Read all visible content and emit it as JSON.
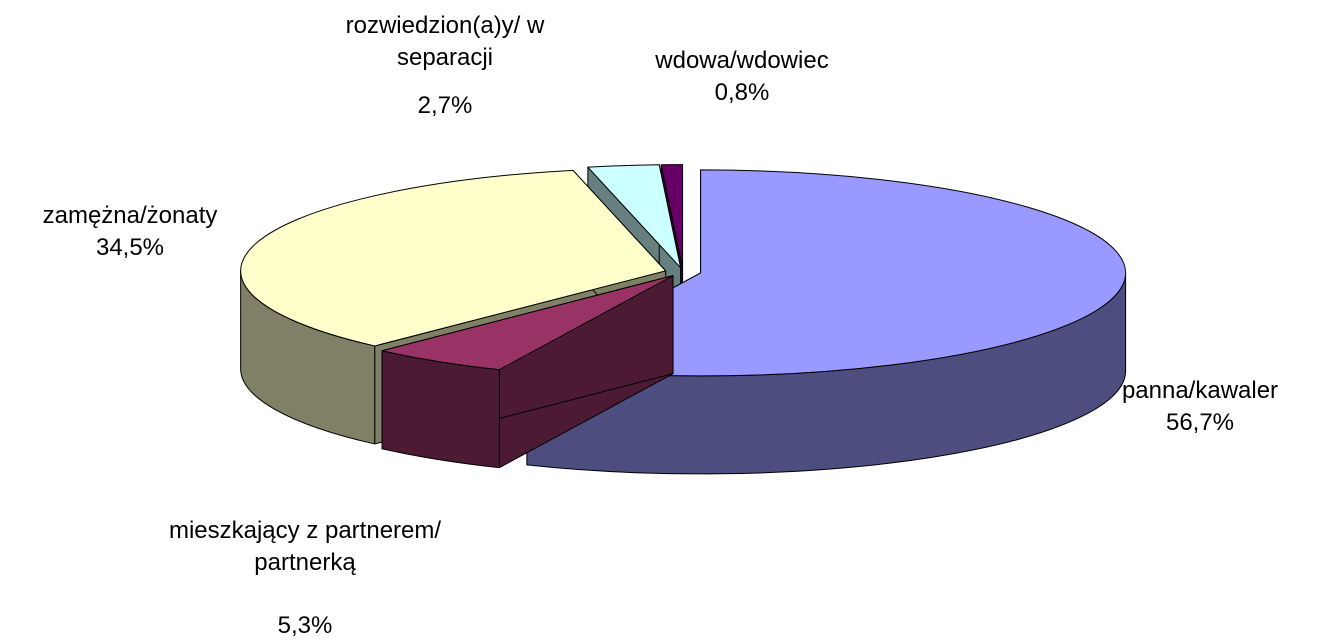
{
  "chart_data": {
    "type": "pie3d",
    "categories": [
      "panna/kawaler",
      "mieszkający z partnerem/ partnerką",
      "zamężna/żonaty",
      "rozwiedzion(a)y/ w separacji",
      "wdowa/wdowiec"
    ],
    "values": [
      56.7,
      5.3,
      34.5,
      2.7,
      0.8
    ],
    "value_labels": [
      "56,7%",
      "5,3%",
      "34,5%",
      "2,7%",
      "0,8%"
    ],
    "colors": [
      "#9999ff",
      "#993366",
      "#ffffcc",
      "#ccffff",
      "#660066"
    ],
    "side_colors": [
      "#4d4d80",
      "#4d1a33",
      "#808066",
      "#668080",
      "#330033"
    ]
  }
}
